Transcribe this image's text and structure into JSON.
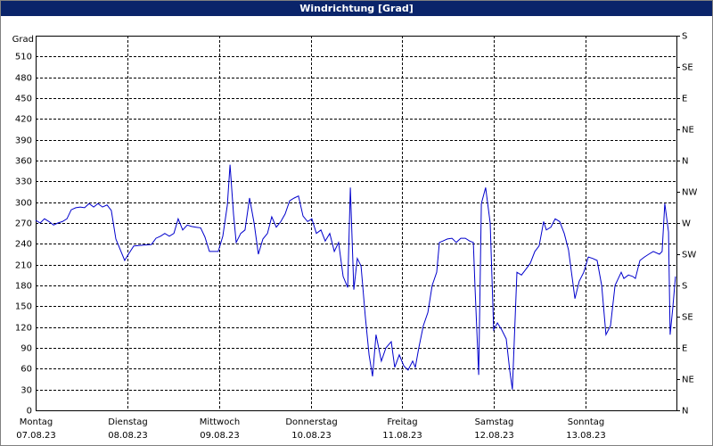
{
  "chart_data": {
    "type": "line",
    "title": "Windrichtung [Grad]",
    "y_label": "Grad",
    "xlim": [
      0,
      168
    ],
    "xticks": [
      {
        "value": 0,
        "label": "Montag",
        "date": "07.08.23"
      },
      {
        "value": 24,
        "label": "Dienstag",
        "date": "08.08.23"
      },
      {
        "value": 48,
        "label": "Mittwoch",
        "date": "09.08.23"
      },
      {
        "value": 72,
        "label": "Donnerstag",
        "date": "10.08.23"
      },
      {
        "value": 96,
        "label": "Freitag",
        "date": "11.08.23"
      },
      {
        "value": 120,
        "label": "Samstag",
        "date": "12.08.23"
      },
      {
        "value": 144,
        "label": "Sonntag",
        "date": "13.08.23"
      }
    ],
    "ylim": [
      0,
      540
    ],
    "yticks": [
      0,
      30,
      60,
      90,
      120,
      150,
      180,
      210,
      240,
      270,
      300,
      330,
      360,
      390,
      420,
      450,
      480,
      510
    ],
    "y2lim": [
      0,
      540
    ],
    "y2ticks": [
      {
        "value": 0,
        "label": "N"
      },
      {
        "value": 45,
        "label": "NE"
      },
      {
        "value": 90,
        "label": "E"
      },
      {
        "value": 135,
        "label": "SE"
      },
      {
        "value": 180,
        "label": "S"
      },
      {
        "value": 225,
        "label": "SW"
      },
      {
        "value": 270,
        "label": "W"
      },
      {
        "value": 315,
        "label": "NW"
      },
      {
        "value": 360,
        "label": "N"
      },
      {
        "value": 405,
        "label": "NE"
      },
      {
        "value": 450,
        "label": "E"
      },
      {
        "value": 495,
        "label": "SE"
      },
      {
        "value": 540,
        "label": "S"
      }
    ],
    "grid": true,
    "color": "#0000cc",
    "x": [
      0,
      1.2,
      2.3,
      3.5,
      4.7,
      5.8,
      7,
      8.2,
      9.3,
      10.5,
      11.7,
      12.8,
      14,
      15.2,
      16.3,
      17.5,
      18.7,
      19.8,
      21,
      22.2,
      23.3,
      24.3,
      25.7,
      28,
      30.3,
      31.5,
      32.7,
      33.8,
      35,
      36.2,
      37.3,
      38.5,
      39.7,
      40.8,
      42,
      43.2,
      44.3,
      45.5,
      46.7,
      47.8,
      49,
      50.2,
      50.9,
      51.8,
      52.5,
      53.7,
      54.8,
      56,
      57.2,
      58.3,
      59.5,
      60.7,
      61.8,
      63,
      64.2,
      65.3,
      66.5,
      67.7,
      68.8,
      70,
      71.2,
      72.3,
      73.5,
      74.7,
      75.8,
      77,
      78.2,
      79.3,
      80.5,
      81.7,
      82.4,
      83.3,
      84.2,
      85.2,
      86.3,
      87.3,
      88.2,
      89.1,
      90.5,
      91.7,
      93.1,
      94,
      95.2,
      96.4,
      97.5,
      98.7,
      99.4,
      100.3,
      101.5,
      102.7,
      103.8,
      105,
      105.7,
      106.6,
      107.8,
      109,
      110.1,
      111.3,
      112.5,
      113.6,
      114.6,
      115,
      116,
      116.7,
      117.8,
      119,
      119.9,
      120.9,
      122,
      123.2,
      124.1,
      124.8,
      126,
      127.2,
      128.3,
      129.5,
      130.7,
      131.8,
      133,
      133.7,
      134.9,
      136,
      137.2,
      138.4,
      139.5,
      141.2,
      142.3,
      143.5,
      144.7,
      145.8,
      147,
      148.2,
      149.3,
      150.5,
      151.7,
      153.3,
      154,
      155.2,
      156.3,
      157,
      158.2,
      159.4,
      160.5,
      161.7,
      163.3,
      164,
      164.7,
      165.7,
      166.1,
      166.8,
      167.5
    ],
    "values": [
      274,
      270,
      276,
      272,
      267,
      270,
      272,
      276,
      289,
      292,
      293,
      292,
      298,
      293,
      298,
      293,
      296,
      288,
      247,
      231,
      216,
      225,
      237,
      238,
      239,
      248,
      251,
      255,
      251,
      255,
      276,
      260,
      267,
      265,
      264,
      263,
      250,
      229,
      229,
      229,
      251,
      296,
      354,
      283,
      242,
      255,
      260,
      306,
      270,
      225,
      247,
      255,
      279,
      264,
      272,
      283,
      302,
      306,
      309,
      280,
      272,
      276,
      255,
      260,
      244,
      255,
      229,
      242,
      193,
      177,
      321,
      174,
      219,
      208,
      135,
      80,
      49,
      109,
      71,
      90,
      99,
      62,
      80,
      64,
      58,
      71,
      62,
      90,
      122,
      141,
      180,
      199,
      242,
      244,
      247,
      248,
      242,
      248,
      248,
      244,
      242,
      180,
      51,
      298,
      321,
      270,
      116,
      126,
      116,
      103,
      58,
      30,
      199,
      195,
      203,
      212,
      229,
      237,
      272,
      260,
      264,
      276,
      272,
      255,
      231,
      161,
      186,
      199,
      221,
      219,
      216,
      180,
      109,
      122,
      180,
      199,
      190,
      195,
      193,
      190,
      216,
      221,
      225,
      229,
      225,
      229,
      298,
      257,
      109,
      148,
      193
    ]
  }
}
